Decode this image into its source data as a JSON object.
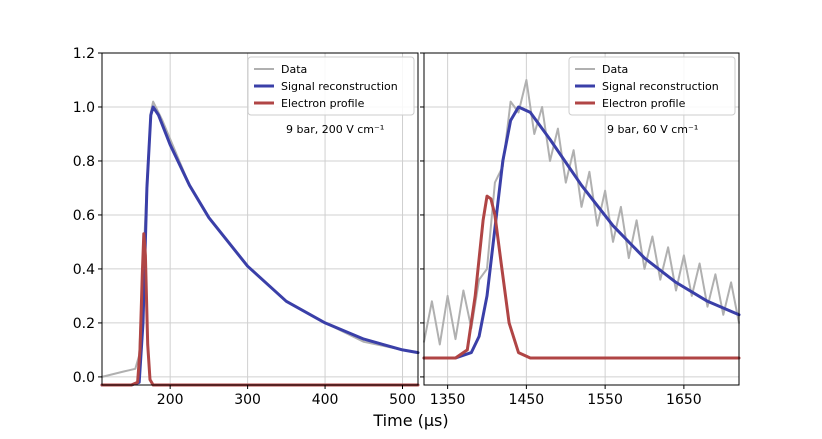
{
  "chart_data": {
    "type": "line",
    "xlabel": "Time (μs)",
    "ylabel": "",
    "ylim": [
      -0.03,
      1.2
    ],
    "yticks": [
      0.0,
      0.2,
      0.4,
      0.6,
      0.8,
      1.0,
      1.2
    ],
    "ytick_labels": [
      "0.0",
      "0.2",
      "0.4",
      "0.6",
      "0.8",
      "1.0",
      "1.2"
    ],
    "colors": {
      "data": "#b0b0b0",
      "signal": "#3a3fa8",
      "electron": "#b04545"
    },
    "legend_labels": [
      "Data",
      "Signal reconstruction",
      "Electron profile"
    ],
    "legend_position": "top-right",
    "panels": [
      {
        "xlim": [
          112,
          520
        ],
        "xticks": [
          200,
          300,
          400,
          500
        ],
        "xtick_labels": [
          "200",
          "300",
          "400",
          "500"
        ],
        "annotation": "9 bar, 200 V cm⁻¹",
        "series": [
          {
            "name": "Signal reconstruction",
            "x": [
              112,
              150,
              160,
              165,
              170,
              175,
              178,
              185,
              200,
              225,
              250,
              300,
              350,
              400,
              450,
              500,
              520
            ],
            "y": [
              -0.03,
              -0.03,
              -0.02,
              0.2,
              0.7,
              0.97,
              1.0,
              0.97,
              0.86,
              0.71,
              0.59,
              0.41,
              0.28,
              0.2,
              0.14,
              0.1,
              0.09
            ]
          },
          {
            "name": "Electron profile",
            "x": [
              112,
              150,
              158,
              161,
              164,
              166,
              168,
              171,
              174,
              178,
              185,
              520
            ],
            "y": [
              -0.03,
              -0.03,
              -0.02,
              0.1,
              0.38,
              0.53,
              0.45,
              0.12,
              -0.01,
              -0.03,
              -0.03,
              -0.03
            ]
          },
          {
            "name": "Data",
            "x": [
              112,
              140,
              155,
              160,
              165,
              170,
              175,
              178,
              190,
              225,
              250,
              300,
              350,
              400,
              450,
              500,
              520
            ],
            "y": [
              0.0,
              0.02,
              0.03,
              0.08,
              0.4,
              0.72,
              0.98,
              1.02,
              0.95,
              0.71,
              0.59,
              0.41,
              0.28,
              0.2,
              0.13,
              0.1,
              0.09
            ]
          }
        ]
      },
      {
        "xlim": [
          1320,
          1720
        ],
        "xticks": [
          1350,
          1450,
          1550,
          1650
        ],
        "xtick_labels": [
          "1350",
          "1450",
          "1550",
          "1650"
        ],
        "annotation": "9 bar, 60 V cm⁻¹",
        "series": [
          {
            "name": "Signal reconstruction",
            "x": [
              1320,
              1360,
              1380,
              1390,
              1400,
              1410,
              1420,
              1430,
              1440,
              1455,
              1480,
              1520,
              1560,
              1600,
              1640,
              1680,
              1720
            ],
            "y": [
              0.07,
              0.07,
              0.09,
              0.15,
              0.3,
              0.55,
              0.8,
              0.95,
              1.0,
              0.98,
              0.88,
              0.71,
              0.56,
              0.44,
              0.35,
              0.28,
              0.23
            ]
          },
          {
            "name": "Electron profile",
            "x": [
              1320,
              1360,
              1375,
              1385,
              1395,
              1400,
              1405,
              1410,
              1418,
              1428,
              1440,
              1455,
              1720
            ],
            "y": [
              0.07,
              0.07,
              0.1,
              0.3,
              0.58,
              0.67,
              0.66,
              0.6,
              0.42,
              0.2,
              0.09,
              0.07,
              0.07
            ]
          },
          {
            "name": "Data",
            "x": [
              1320,
              1330,
              1340,
              1350,
              1360,
              1370,
              1380,
              1390,
              1400,
              1410,
              1420,
              1430,
              1440,
              1450,
              1460,
              1470,
              1480,
              1490,
              1500,
              1510,
              1520,
              1530,
              1540,
              1550,
              1560,
              1570,
              1580,
              1590,
              1600,
              1610,
              1620,
              1630,
              1640,
              1650,
              1660,
              1670,
              1680,
              1690,
              1700,
              1710,
              1720
            ],
            "y": [
              0.13,
              0.28,
              0.12,
              0.3,
              0.14,
              0.32,
              0.18,
              0.36,
              0.4,
              0.72,
              0.78,
              1.02,
              0.98,
              1.1,
              0.9,
              1.0,
              0.8,
              0.92,
              0.72,
              0.84,
              0.63,
              0.76,
              0.56,
              0.69,
              0.5,
              0.63,
              0.44,
              0.58,
              0.4,
              0.52,
              0.36,
              0.48,
              0.32,
              0.45,
              0.3,
              0.42,
              0.26,
              0.38,
              0.23,
              0.35,
              0.2
            ]
          }
        ]
      }
    ]
  }
}
